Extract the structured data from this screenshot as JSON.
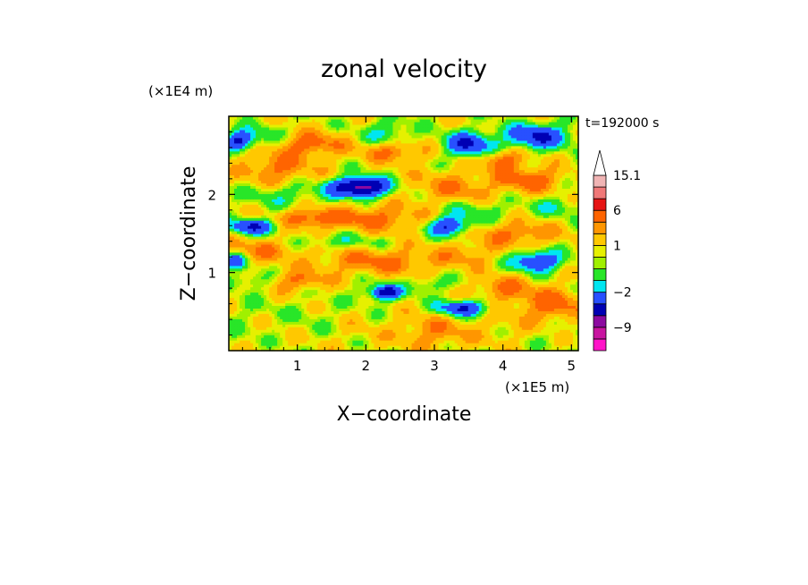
{
  "chart_data": {
    "type": "heatmap",
    "title": "zonal velocity",
    "xlabel": "X−coordinate",
    "ylabel": "Z−coordinate",
    "x_unit": "(×1E5 m)",
    "y_unit": "(×1E4 m)",
    "time_label": "t=192000 s",
    "xlim": [
      0,
      5.1
    ],
    "ylim": [
      0,
      3.0
    ],
    "x_ticks": [
      1,
      2,
      3,
      4,
      5
    ],
    "y_ticks": [
      1,
      2
    ],
    "colorbar": {
      "extend": "max",
      "labels": [
        {
          "value": "15.1",
          "level": 15.1
        },
        {
          "value": "6",
          "level": 6
        },
        {
          "value": "1",
          "level": 1
        },
        {
          "value": "−2",
          "level": -2
        },
        {
          "value": "−9",
          "level": -9
        }
      ],
      "bins": [
        {
          "lo": -16,
          "hi": -12,
          "color": "#ff14c8"
        },
        {
          "lo": -12,
          "hi": -9,
          "color": "#c814a0"
        },
        {
          "lo": -9,
          "hi": -6,
          "color": "#8c0aa0"
        },
        {
          "lo": -6,
          "hi": -4,
          "color": "#0000b4"
        },
        {
          "lo": -4,
          "hi": -2,
          "color": "#2850ff"
        },
        {
          "lo": -2,
          "hi": -1,
          "color": "#00e6f0"
        },
        {
          "lo": -1,
          "hi": 0,
          "color": "#28e628"
        },
        {
          "lo": 0,
          "hi": 0.5,
          "color": "#a0f000"
        },
        {
          "lo": 0.5,
          "hi": 1,
          "color": "#e6f000"
        },
        {
          "lo": 1,
          "hi": 2,
          "color": "#ffc800"
        },
        {
          "lo": 2,
          "hi": 3,
          "color": "#ff9600"
        },
        {
          "lo": 3,
          "hi": 6,
          "color": "#ff6400"
        },
        {
          "lo": 6,
          "hi": 9,
          "color": "#e61414"
        },
        {
          "lo": 9,
          "hi": 12,
          "color": "#f07878"
        },
        {
          "lo": 12,
          "hi": 15.1,
          "color": "#f0b4b4"
        }
      ]
    },
    "field": {
      "background": 0.8,
      "features": [
        {
          "x": 0.15,
          "z": 2.7,
          "w": 0.2,
          "h": 0.12,
          "v": -5
        },
        {
          "x": 0.5,
          "z": 2.75,
          "w": 0.3,
          "h": 0.15,
          "v": -1.5
        },
        {
          "x": 1.2,
          "z": 2.65,
          "w": 0.45,
          "h": 0.14,
          "v": 3
        },
        {
          "x": 2.3,
          "z": 2.8,
          "w": 0.35,
          "h": 0.15,
          "v": -2
        },
        {
          "x": 2.4,
          "z": 2.55,
          "w": 0.45,
          "h": 0.12,
          "v": 2.5
        },
        {
          "x": 3.5,
          "z": 2.65,
          "w": 0.35,
          "h": 0.15,
          "v": -5
        },
        {
          "x": 4.5,
          "z": 2.75,
          "w": 0.45,
          "h": 0.16,
          "v": -5
        },
        {
          "x": 4.0,
          "z": 2.45,
          "w": 0.3,
          "h": 0.12,
          "v": 3
        },
        {
          "x": 0.7,
          "z": 2.35,
          "w": 0.5,
          "h": 0.2,
          "v": 2.5
        },
        {
          "x": 0.8,
          "z": 2.0,
          "w": 0.6,
          "h": 0.15,
          "v": -1.5
        },
        {
          "x": 1.8,
          "z": 2.1,
          "w": 0.35,
          "h": 0.12,
          "v": -6
        },
        {
          "x": 2.1,
          "z": 2.1,
          "w": 0.3,
          "h": 0.12,
          "v": -4
        },
        {
          "x": 3.3,
          "z": 2.1,
          "w": 0.6,
          "h": 0.2,
          "v": 2
        },
        {
          "x": 4.4,
          "z": 2.2,
          "w": 0.45,
          "h": 0.15,
          "v": 3
        },
        {
          "x": 4.8,
          "z": 1.85,
          "w": 0.4,
          "h": 0.13,
          "v": -1.5
        },
        {
          "x": 3.6,
          "z": 1.8,
          "w": 0.5,
          "h": 0.14,
          "v": -1.5
        },
        {
          "x": 0.35,
          "z": 1.6,
          "w": 0.35,
          "h": 0.1,
          "v": -5
        },
        {
          "x": 1.2,
          "z": 1.7,
          "w": 0.5,
          "h": 0.12,
          "v": 3
        },
        {
          "x": 2.2,
          "z": 1.7,
          "w": 0.7,
          "h": 0.16,
          "v": 2.5
        },
        {
          "x": 3.2,
          "z": 1.6,
          "w": 0.3,
          "h": 0.12,
          "v": -5
        },
        {
          "x": 4.2,
          "z": 1.5,
          "w": 0.55,
          "h": 0.15,
          "v": 2.5
        },
        {
          "x": 0.5,
          "z": 1.3,
          "w": 0.5,
          "h": 0.14,
          "v": 2
        },
        {
          "x": 1.6,
          "z": 1.4,
          "w": 0.6,
          "h": 0.1,
          "v": -1.5
        },
        {
          "x": 2.2,
          "z": 1.15,
          "w": 0.9,
          "h": 0.16,
          "v": 2.5
        },
        {
          "x": 3.5,
          "z": 1.25,
          "w": 0.4,
          "h": 0.14,
          "v": 1.5
        },
        {
          "x": 4.5,
          "z": 1.15,
          "w": 0.35,
          "h": 0.13,
          "v": -5
        },
        {
          "x": 0.1,
          "z": 1.15,
          "w": 0.15,
          "h": 0.1,
          "v": -4
        },
        {
          "x": 0.3,
          "z": 0.9,
          "w": 0.4,
          "h": 0.1,
          "v": -1.5
        },
        {
          "x": 1.0,
          "z": 0.9,
          "w": 0.4,
          "h": 0.12,
          "v": 2.5
        },
        {
          "x": 2.2,
          "z": 0.75,
          "w": 0.35,
          "h": 0.14,
          "v": -1.5
        },
        {
          "x": 2.3,
          "z": 0.75,
          "w": 0.2,
          "h": 0.08,
          "v": -5
        },
        {
          "x": 2.9,
          "z": 0.85,
          "w": 0.3,
          "h": 0.1,
          "v": -1.5
        },
        {
          "x": 3.4,
          "z": 0.55,
          "w": 0.35,
          "h": 0.1,
          "v": -5
        },
        {
          "x": 4.0,
          "z": 0.8,
          "w": 0.35,
          "h": 0.15,
          "v": 2.5
        },
        {
          "x": 4.7,
          "z": 0.6,
          "w": 0.45,
          "h": 0.2,
          "v": 3
        },
        {
          "x": 0.3,
          "z": 0.5,
          "w": 0.5,
          "h": 0.2,
          "v": -0.5
        },
        {
          "x": 1.2,
          "z": 0.45,
          "w": 0.4,
          "h": 0.25,
          "v": -0.5
        },
        {
          "x": 2.0,
          "z": 0.2,
          "w": 0.6,
          "h": 0.2,
          "v": 0.3
        },
        {
          "x": 3.0,
          "z": 0.25,
          "w": 0.5,
          "h": 0.2,
          "v": 2
        },
        {
          "x": 4.0,
          "z": 0.3,
          "w": 0.45,
          "h": 0.2,
          "v": 0.6
        },
        {
          "x": 4.8,
          "z": 0.2,
          "w": 0.35,
          "h": 0.15,
          "v": -0.5
        },
        {
          "x": 0.1,
          "z": 0.15,
          "w": 0.25,
          "h": 0.15,
          "v": -0.5
        }
      ],
      "wave_amplitude": 1.2
    }
  }
}
